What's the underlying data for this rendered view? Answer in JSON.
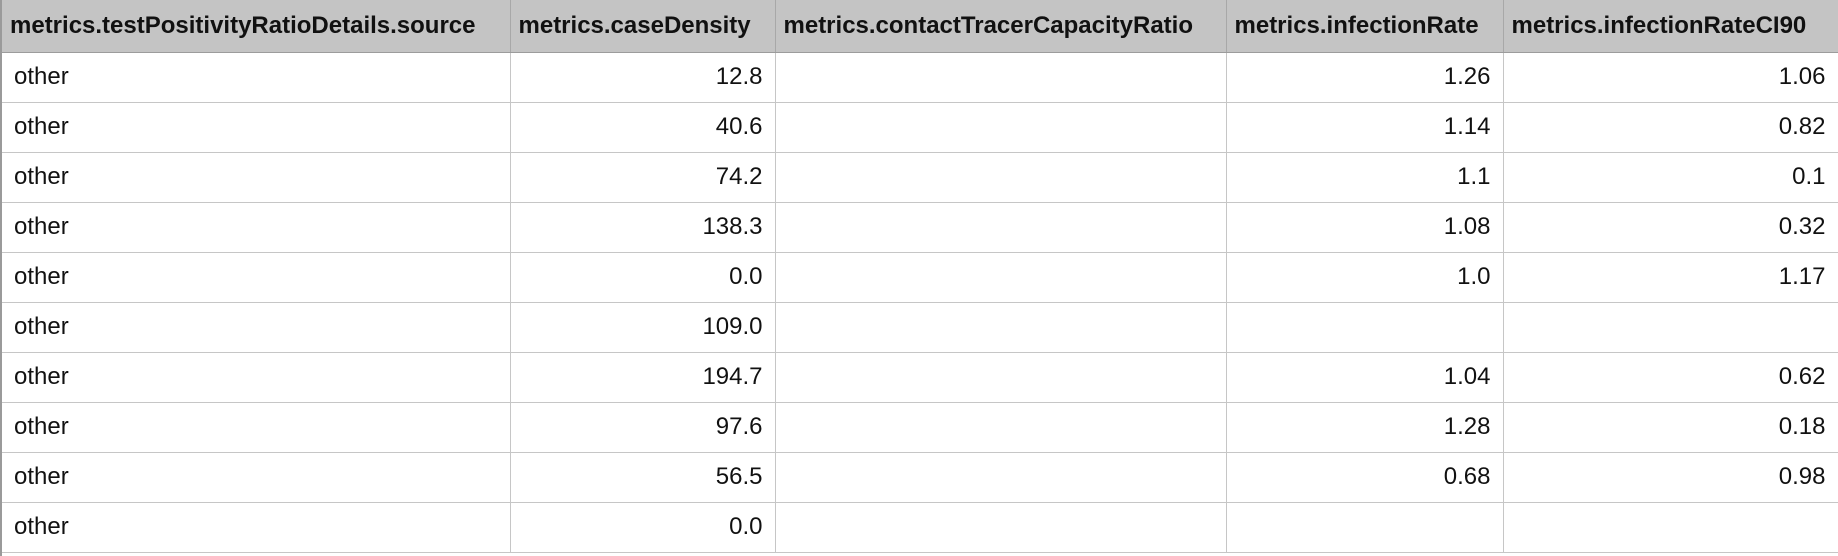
{
  "table": {
    "columns": [
      "metrics.testPositivityRatioDetails.source",
      "metrics.caseDensity",
      "metrics.contactTracerCapacityRatio",
      "metrics.infectionRate",
      "metrics.infectionRateCI90"
    ],
    "rows": [
      [
        "other",
        "12.8",
        "",
        "1.26",
        "1.06"
      ],
      [
        "other",
        "40.6",
        "",
        "1.14",
        "0.82"
      ],
      [
        "other",
        "74.2",
        "",
        "1.1",
        "0.1"
      ],
      [
        "other",
        "138.3",
        "",
        "1.08",
        "0.32"
      ],
      [
        "other",
        "0.0",
        "",
        "1.0",
        "1.17"
      ],
      [
        "other",
        "109.0",
        "",
        "",
        ""
      ],
      [
        "other",
        "194.7",
        "",
        "1.04",
        "0.62"
      ],
      [
        "other",
        "97.6",
        "",
        "1.28",
        "0.18"
      ],
      [
        "other",
        "56.5",
        "",
        "0.68",
        "0.98"
      ],
      [
        "other",
        "0.0",
        "",
        "",
        ""
      ]
    ]
  }
}
